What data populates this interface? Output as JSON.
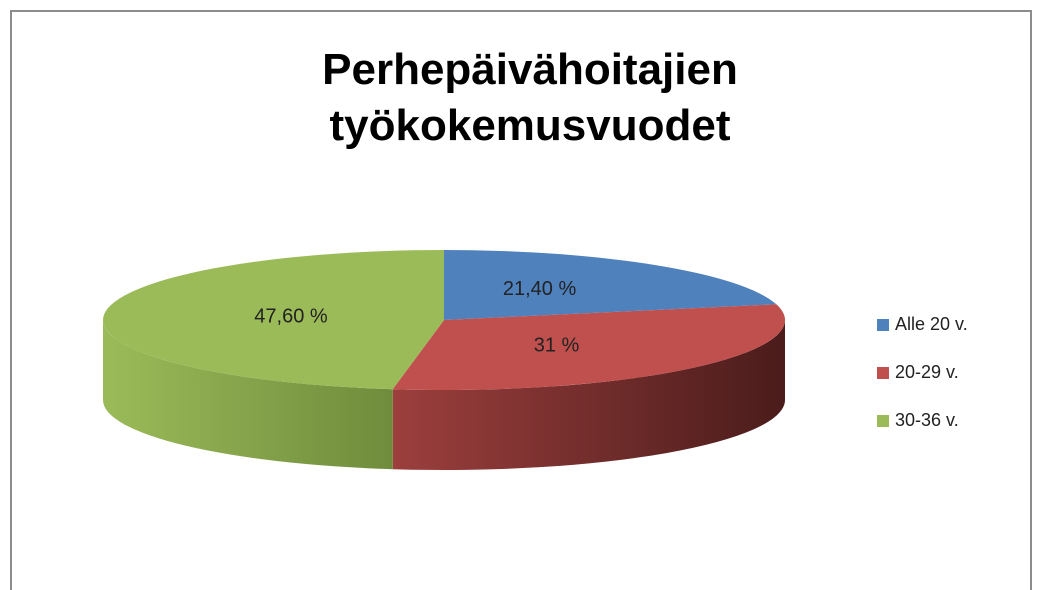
{
  "chart_data": {
    "type": "pie",
    "title": "Perhepäivähoitajien työkokemusvuodet",
    "categories": [
      "Alle 20 v.",
      "20-29 v.",
      "30-36 v."
    ],
    "values": [
      21.4,
      31,
      47.6
    ],
    "value_labels": [
      "21,40 %",
      "31 %",
      "47,60 %"
    ],
    "colors": [
      "#4f81bd",
      "#c0504d",
      "#9bbb59"
    ],
    "legend": "right"
  }
}
